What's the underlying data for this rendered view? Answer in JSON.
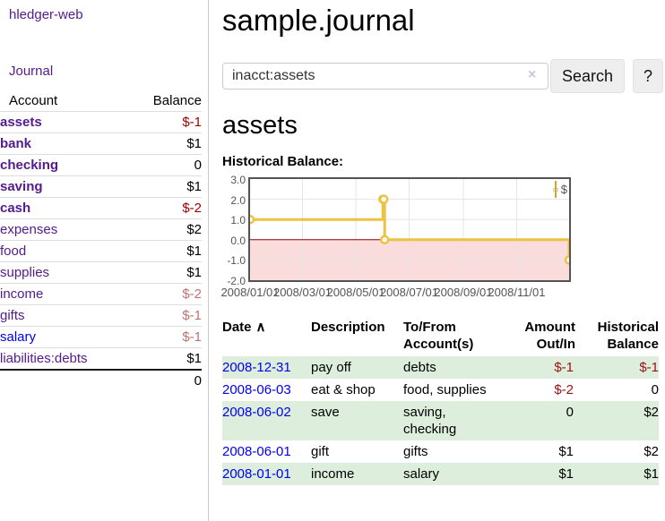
{
  "sidebar": {
    "brand": "hledger-web",
    "journal_link": "Journal",
    "accounts_table": {
      "header": {
        "account": "Account",
        "balance": "Balance"
      },
      "rows": [
        {
          "name": "assets",
          "balance": "$-1"
        },
        {
          "name": "bank",
          "balance": "$1"
        },
        {
          "name": "checking",
          "balance": "0"
        },
        {
          "name": "saving",
          "balance": "$1"
        },
        {
          "name": "cash",
          "balance": "$-2"
        },
        {
          "name": "expenses",
          "balance": "$2"
        },
        {
          "name": "food",
          "balance": "$1"
        },
        {
          "name": "supplies",
          "balance": "$1"
        },
        {
          "name": "income",
          "balance": "$-2"
        },
        {
          "name": "gifts",
          "balance": "$-1"
        },
        {
          "name": "salary",
          "balance": "$-1"
        },
        {
          "name": "liabilities:debts",
          "balance": "$1"
        }
      ],
      "total": "0"
    }
  },
  "header": {
    "title": "sample.journal"
  },
  "search": {
    "value": "inacct:assets",
    "clear_icon": "×",
    "search_button": "Search",
    "help_button": "?"
  },
  "account_page": {
    "heading": "assets",
    "chart_label": "Historical Balance:"
  },
  "chart_data": {
    "type": "line",
    "step": true,
    "title": "Historical Balance:",
    "series": [
      {
        "name": "$",
        "color": "#edc240",
        "points": [
          [
            "2008-01-01",
            1
          ],
          [
            "2008-06-01",
            2
          ],
          [
            "2008-06-02",
            2
          ],
          [
            "2008-06-03",
            0
          ],
          [
            "2008-12-31",
            -1
          ]
        ]
      }
    ],
    "x_ticks": [
      "2008/01/01",
      "2008/03/01",
      "2008/05/01",
      "2008/07/01",
      "2008/09/01",
      "2008/11/01"
    ],
    "y_ticks": [
      3.0,
      2.0,
      1.0,
      0.0,
      -1.0,
      -2.0
    ],
    "xlim": [
      "2008-01-01",
      "2008-12-31"
    ],
    "ylim": [
      -2,
      3
    ],
    "grid": true,
    "negative_fill": "#fbdcdc",
    "zero_line_color": "#8b0000",
    "legend": {
      "label": "$",
      "position": "top-right"
    }
  },
  "register": {
    "columns": {
      "date": "Date",
      "date_sort_icon": "∧",
      "description": "Description",
      "tofrom_line1": "To/From",
      "tofrom_line2": "Account(s)",
      "amount_line1": "Amount",
      "amount_line2": "Out/In",
      "balance_line1": "Historical",
      "balance_line2": "Balance"
    },
    "rows": [
      {
        "date": "2008-12-31",
        "description": "pay off",
        "accounts": "debts",
        "amount": "$-1",
        "balance": "$-1"
      },
      {
        "date": "2008-06-03",
        "description": "eat & shop",
        "accounts": "food, supplies",
        "amount": "$-2",
        "balance": "0"
      },
      {
        "date": "2008-06-02",
        "description": "save",
        "accounts": "saving, checking",
        "amount": "0",
        "balance": "$2"
      },
      {
        "date": "2008-06-01",
        "description": "gift",
        "accounts": "gifts",
        "amount": "$1",
        "balance": "$2"
      },
      {
        "date": "2008-01-01",
        "description": "income",
        "accounts": "salary",
        "amount": "$1",
        "balance": "$1"
      }
    ]
  }
}
